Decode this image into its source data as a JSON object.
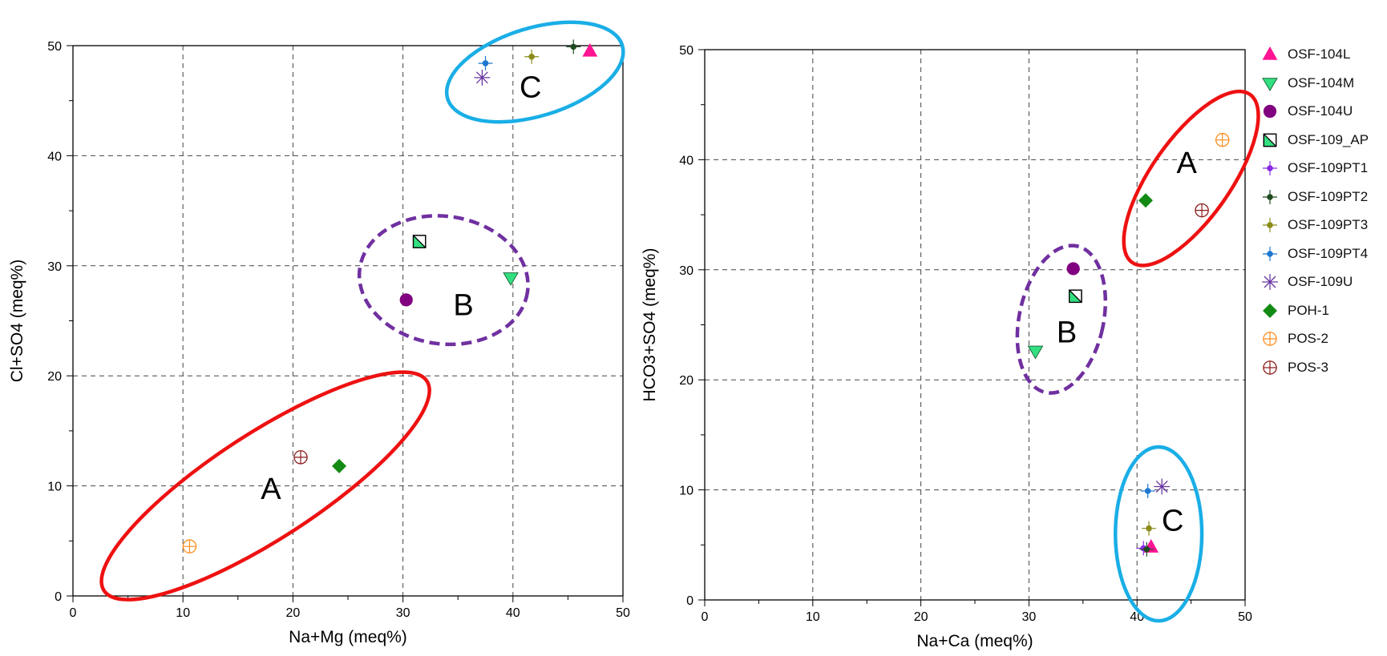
{
  "chart_data": [
    {
      "type": "scatter",
      "xlabel": "Na+Mg (meq%)",
      "ylabel": "Cl+SO4 (meq%)",
      "xlim": [
        0,
        50
      ],
      "ylim": [
        0,
        50
      ],
      "xticks": [
        "0",
        "10",
        "20",
        "30",
        "40",
        "50"
      ],
      "yticks": [
        "0",
        "10",
        "20",
        "30",
        "40",
        "50"
      ],
      "grid": true,
      "series": [
        {
          "name": "OSF-104L",
          "x": 47.0,
          "y": 49.5
        },
        {
          "name": "OSF-104M",
          "x": 39.8,
          "y": 28.9
        },
        {
          "name": "OSF-104U",
          "x": 30.3,
          "y": 26.9
        },
        {
          "name": "OSF-109_AP",
          "x": 31.5,
          "y": 32.2
        },
        {
          "name": "OSF-109PT2",
          "x": 45.5,
          "y": 49.9
        },
        {
          "name": "OSF-109PT3",
          "x": 41.7,
          "y": 49.0
        },
        {
          "name": "OSF-109PT4",
          "x": 37.5,
          "y": 48.4
        },
        {
          "name": "OSF-109U",
          "x": 37.2,
          "y": 47.1
        },
        {
          "name": "POH-1",
          "x": 24.2,
          "y": 11.8
        },
        {
          "name": "POS-2",
          "x": 10.6,
          "y": 4.5
        },
        {
          "name": "POS-3",
          "x": 20.7,
          "y": 12.6
        }
      ],
      "groups": [
        {
          "label": "A",
          "cx": 17.5,
          "cy": 10.0,
          "rx": 17.5,
          "ry": 4.8,
          "angle": -33,
          "color": "#ee1111",
          "dashed": false,
          "label_x": 18.0,
          "label_y": 8.8
        },
        {
          "label": "B",
          "cx": 33.7,
          "cy": 28.7,
          "rx": 7.7,
          "ry": 5.8,
          "angle": 8,
          "color": "#7030a0",
          "dashed": true,
          "label_x": 35.5,
          "label_y": 25.5
        },
        {
          "label": "C",
          "cx": 42.0,
          "cy": 47.6,
          "rx": 8.3,
          "ry": 4.0,
          "angle": -17,
          "color": "#1aaee6",
          "dashed": false,
          "label_x": 41.6,
          "label_y": 45.3
        }
      ]
    },
    {
      "type": "scatter",
      "xlabel": "Na+Ca (meq%)",
      "ylabel": "HCO3+SO4 (meq%)",
      "xlim": [
        0,
        50
      ],
      "ylim": [
        0,
        50
      ],
      "xticks": [
        "0",
        "10",
        "20",
        "30",
        "40",
        "50"
      ],
      "yticks": [
        "0",
        "10",
        "20",
        "30",
        "40",
        "50"
      ],
      "grid": true,
      "series": [
        {
          "name": "OSF-104L",
          "x": 41.3,
          "y": 4.8
        },
        {
          "name": "OSF-104M",
          "x": 30.6,
          "y": 22.6
        },
        {
          "name": "OSF-104U",
          "x": 34.1,
          "y": 30.1
        },
        {
          "name": "OSF-109_AP",
          "x": 34.3,
          "y": 27.6
        },
        {
          "name": "OSF-109PT1",
          "x": 40.6,
          "y": 4.7
        },
        {
          "name": "OSF-109PT2",
          "x": 40.9,
          "y": 4.6
        },
        {
          "name": "OSF-109PT3",
          "x": 41.1,
          "y": 6.5
        },
        {
          "name": "OSF-109PT4",
          "x": 41.0,
          "y": 9.9
        },
        {
          "name": "OSF-109U",
          "x": 42.3,
          "y": 10.3
        },
        {
          "name": "POH-1",
          "x": 40.8,
          "y": 36.3
        },
        {
          "name": "POS-2",
          "x": 47.9,
          "y": 41.8
        },
        {
          "name": "POS-3",
          "x": 46.0,
          "y": 35.4
        }
      ],
      "groups": [
        {
          "label": "A",
          "cx": 45.0,
          "cy": 38.3,
          "rx": 9.5,
          "ry": 3.6,
          "angle": -55,
          "color": "#ee1111",
          "dashed": false,
          "label_x": 44.6,
          "label_y": 38.8
        },
        {
          "label": "B",
          "cx": 33.0,
          "cy": 25.5,
          "rx": 3.9,
          "ry": 6.8,
          "angle": 12,
          "color": "#7030a0",
          "dashed": true,
          "label_x": 33.5,
          "label_y": 23.4
        },
        {
          "label": "C",
          "cx": 42.0,
          "cy": 6.0,
          "rx": 4.0,
          "ry": 7.9,
          "angle": 0,
          "color": "#1aaee6",
          "dashed": false,
          "label_x": 43.3,
          "label_y": 6.3
        }
      ]
    }
  ],
  "legend": {
    "placement": "right",
    "entries": [
      {
        "name": "OSF-104L",
        "label": "OSF-104L",
        "marker": "triangle-up",
        "color": "#ff1493"
      },
      {
        "name": "OSF-104M",
        "label": "OSF-104M",
        "marker": "triangle-down",
        "color": "#33e080"
      },
      {
        "name": "OSF-104U",
        "label": "OSF-104U",
        "marker": "circle",
        "color": "#800080"
      },
      {
        "name": "OSF-109_AP",
        "label": "OSF-109_AP",
        "marker": "half-square",
        "color": "#33e080"
      },
      {
        "name": "OSF-109PT1",
        "label": "OSF-109PT1",
        "marker": "plus-dot",
        "color": "#8a2be2"
      },
      {
        "name": "OSF-109PT2",
        "label": "OSF-109PT2",
        "marker": "plus-dot",
        "color": "#1f4a1f"
      },
      {
        "name": "OSF-109PT3",
        "label": "OSF-109PT3",
        "marker": "plus-dot",
        "color": "#8b8b1a"
      },
      {
        "name": "OSF-109PT4",
        "label": "OSF-109PT4",
        "marker": "plus-dot",
        "color": "#1e78d0"
      },
      {
        "name": "OSF-109U",
        "label": "OSF-109U",
        "marker": "asterisk",
        "color": "#6a35a0"
      },
      {
        "name": "POH-1",
        "label": "POH-1",
        "marker": "diamond",
        "color": "#138a13"
      },
      {
        "name": "POS-2",
        "label": "POS-2",
        "marker": "circle-plus",
        "color": "#ff8c1a"
      },
      {
        "name": "POS-3",
        "label": "POS-3",
        "marker": "circle-plus",
        "color": "#8b1a1a"
      }
    ]
  }
}
